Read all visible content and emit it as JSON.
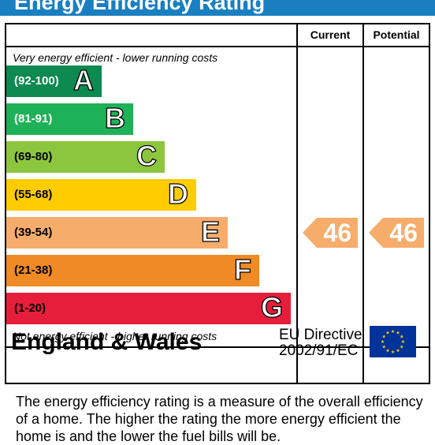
{
  "header": {
    "title": "Energy Efficiency Rating"
  },
  "columns": {
    "current": "Current",
    "potential": "Potential"
  },
  "notes": {
    "top": "Very energy efficient - lower running costs",
    "bottom": "Not energy efficient - higher running costs"
  },
  "chart_data": {
    "type": "bar",
    "title": "Energy Efficiency Rating",
    "categories": [
      "A",
      "B",
      "C",
      "D",
      "E",
      "F",
      "G"
    ],
    "ranges": [
      "(92-100)",
      "(81-91)",
      "(69-80)",
      "(55-68)",
      "(39-54)",
      "(21-38)",
      "(1-20)"
    ],
    "colors": [
      "#0c8a4f",
      "#1fb157",
      "#8cc63f",
      "#ffcc00",
      "#f6ad6b",
      "#f08a24",
      "#e61e3c"
    ],
    "current": {
      "value": 46,
      "band": "E",
      "color": "#f6ad6b"
    },
    "potential": {
      "value": 46,
      "band": "E",
      "color": "#f6ad6b"
    }
  },
  "footer": {
    "region": "England & Wales",
    "directive_line1": "EU Directive",
    "directive_line2": "2002/91/EC",
    "flag_icon": "eu-flag-icon"
  },
  "description": "The energy efficiency rating is a measure of the overall efficiency of a home.  The higher the rating the more energy efficient the home is and the lower the fuel bills will be."
}
